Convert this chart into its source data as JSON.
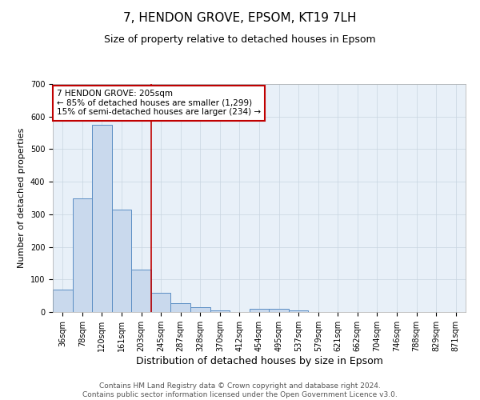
{
  "title": "7, HENDON GROVE, EPSOM, KT19 7LH",
  "subtitle": "Size of property relative to detached houses in Epsom",
  "xlabel": "Distribution of detached houses by size in Epsom",
  "ylabel": "Number of detached properties",
  "bin_labels": [
    "36sqm",
    "78sqm",
    "120sqm",
    "161sqm",
    "203sqm",
    "245sqm",
    "287sqm",
    "328sqm",
    "370sqm",
    "412sqm",
    "454sqm",
    "495sqm",
    "537sqm",
    "579sqm",
    "621sqm",
    "662sqm",
    "704sqm",
    "746sqm",
    "788sqm",
    "829sqm",
    "871sqm"
  ],
  "bar_heights": [
    70,
    350,
    575,
    315,
    130,
    58,
    26,
    15,
    5,
    0,
    10,
    10,
    5,
    0,
    0,
    0,
    0,
    0,
    0,
    0,
    0
  ],
  "bar_color": "#c9d9ed",
  "bar_edge_color": "#5b8ec4",
  "vline_x": 4.5,
  "vline_color": "#c00000",
  "annotation_text": "7 HENDON GROVE: 205sqm\n← 85% of detached houses are smaller (1,299)\n15% of semi-detached houses are larger (234) →",
  "annotation_box_color": "white",
  "annotation_box_edge": "#c00000",
  "ylim": [
    0,
    700
  ],
  "yticks": [
    0,
    100,
    200,
    300,
    400,
    500,
    600,
    700
  ],
  "grid_color": "#c8d4e0",
  "bg_color": "#e8f0f8",
  "footer": "Contains HM Land Registry data © Crown copyright and database right 2024.\nContains public sector information licensed under the Open Government Licence v3.0.",
  "title_fontsize": 11,
  "subtitle_fontsize": 9,
  "xlabel_fontsize": 9,
  "ylabel_fontsize": 8,
  "tick_fontsize": 7,
  "footer_fontsize": 6.5,
  "annot_fontsize": 7.5
}
